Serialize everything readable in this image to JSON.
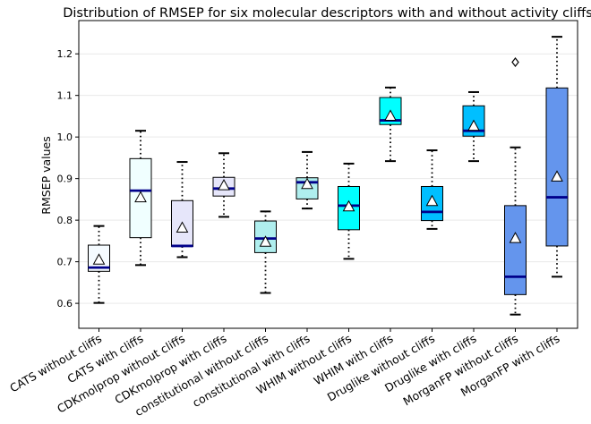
{
  "chart_data": {
    "type": "box",
    "title": "Distribution of RMSEP for six molecular descriptors with and without activity cliffs",
    "xlabel": "",
    "ylabel": "RMSEP values",
    "ylim": [
      0.54,
      1.28
    ],
    "yticks": [
      0.6,
      0.7,
      0.8,
      0.9,
      1.0,
      1.1,
      1.2
    ],
    "ytick_labels": [
      "0.6",
      "0.7",
      "0.8",
      "0.9",
      "1.0",
      "1.1",
      "1.2"
    ],
    "grid": "horizontal",
    "categories": [
      "CATS without cliffs",
      "CATS with cliffs",
      "CDKmolprop without cliffs",
      "CDKmolprop with cliffs",
      "constitutional without cliffs",
      "constitutional with cliffs",
      "WHIM without cliffs",
      "WHIM with cliffs",
      "Druglike without cliffs",
      "Druglike with cliffs",
      "MorganFP without cliffs",
      "MorganFP with cliffs"
    ],
    "boxes": [
      {
        "whisker_low": 0.601,
        "q1": 0.677,
        "median": 0.686,
        "q3": 0.74,
        "whisker_high": 0.786,
        "mean": 0.705,
        "outliers": [],
        "color": "#f5fbff"
      },
      {
        "whisker_low": 0.692,
        "q1": 0.758,
        "median": 0.871,
        "q3": 0.948,
        "whisker_high": 1.015,
        "mean": 0.855,
        "outliers": [],
        "color": "#f0ffff"
      },
      {
        "whisker_low": 0.711,
        "q1": 0.737,
        "median": 0.738,
        "q3": 0.847,
        "whisker_high": 0.94,
        "mean": 0.782,
        "outliers": [],
        "color": "#e6e6fa"
      },
      {
        "whisker_low": 0.808,
        "q1": 0.858,
        "median": 0.876,
        "q3": 0.903,
        "whisker_high": 0.961,
        "mean": 0.884,
        "outliers": [],
        "color": "#e6e6fa"
      },
      {
        "whisker_low": 0.625,
        "q1": 0.722,
        "median": 0.756,
        "q3": 0.798,
        "whisker_high": 0.821,
        "mean": 0.748,
        "outliers": [],
        "color": "#afeeee"
      },
      {
        "whisker_low": 0.828,
        "q1": 0.851,
        "median": 0.891,
        "q3": 0.902,
        "whisker_high": 0.964,
        "mean": 0.887,
        "outliers": [],
        "color": "#afeeee"
      },
      {
        "whisker_low": 0.707,
        "q1": 0.777,
        "median": 0.835,
        "q3": 0.881,
        "whisker_high": 0.936,
        "mean": 0.833,
        "outliers": [],
        "color": "#00ffff"
      },
      {
        "whisker_low": 0.942,
        "q1": 1.03,
        "median": 1.04,
        "q3": 1.095,
        "whisker_high": 1.119,
        "mean": 1.051,
        "outliers": [],
        "color": "#00ffff"
      },
      {
        "whisker_low": 0.779,
        "q1": 0.799,
        "median": 0.82,
        "q3": 0.881,
        "whisker_high": 0.968,
        "mean": 0.846,
        "outliers": [],
        "color": "#00bfff"
      },
      {
        "whisker_low": 0.942,
        "q1": 1.002,
        "median": 1.015,
        "q3": 1.075,
        "whisker_high": 1.108,
        "mean": 1.027,
        "outliers": [],
        "color": "#00bfff"
      },
      {
        "whisker_low": 0.573,
        "q1": 0.621,
        "median": 0.664,
        "q3": 0.835,
        "whisker_high": 0.975,
        "mean": 0.757,
        "outliers": [
          1.18
        ],
        "color": "#6495ed"
      },
      {
        "whisker_low": 0.664,
        "q1": 0.738,
        "median": 0.855,
        "q3": 1.118,
        "whisker_high": 1.241,
        "mean": 0.905,
        "outliers": [],
        "color": "#6495ed"
      }
    ],
    "median_color": "#00008b",
    "whisker_style": "dotted",
    "mean_marker": "white-triangle",
    "outlier_marker": "diamond"
  }
}
